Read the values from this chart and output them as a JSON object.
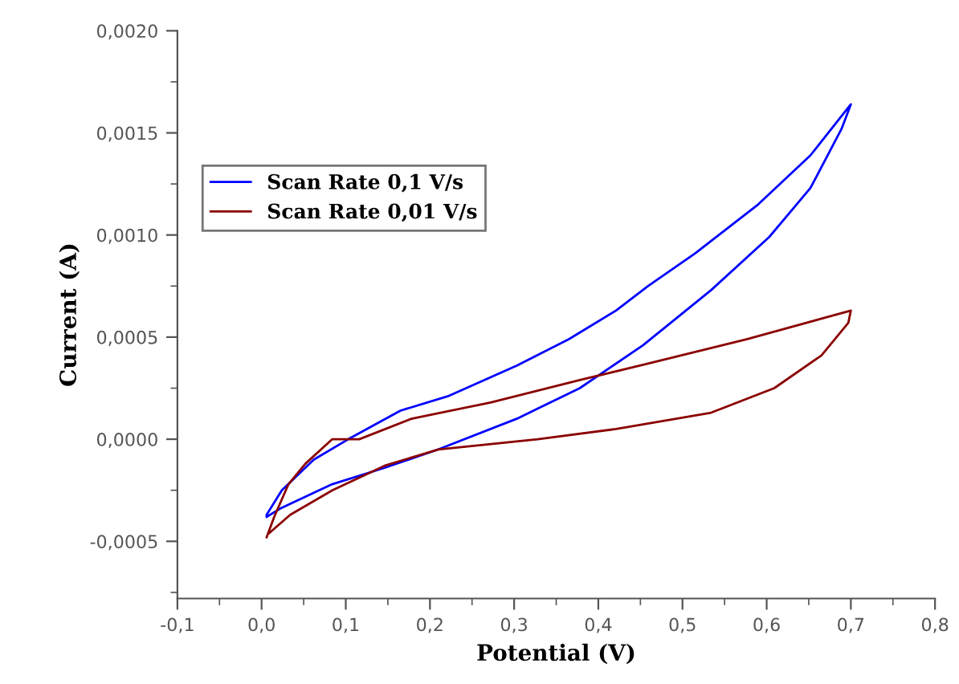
{
  "chart_data": {
    "type": "line",
    "xlabel": "Potential (V)",
    "ylabel": "Current (A)",
    "xlim": [
      -0.1,
      0.8
    ],
    "ylim": [
      -0.00078,
      0.002
    ],
    "xticks": [
      {
        "value": -0.1,
        "label": "-0,1"
      },
      {
        "value": 0,
        "label": "0,0"
      },
      {
        "value": 0.1,
        "label": "0,1"
      },
      {
        "value": 0.2,
        "label": "0,2"
      },
      {
        "value": 0.3,
        "label": "0,3"
      },
      {
        "value": 0.4,
        "label": "0,4"
      },
      {
        "value": 0.5,
        "label": "0,5"
      },
      {
        "value": 0.6,
        "label": "0,6"
      },
      {
        "value": 0.7,
        "label": "0,7"
      },
      {
        "value": 0.8,
        "label": "0,8"
      }
    ],
    "yticks": [
      {
        "value": -0.0005,
        "label": "-0,0005"
      },
      {
        "value": 0,
        "label": "0,0000"
      },
      {
        "value": 0.0005,
        "label": "0,0005"
      },
      {
        "value": 0.001,
        "label": "0,0010"
      },
      {
        "value": 0.0015,
        "label": "0,0015"
      },
      {
        "value": 0.002,
        "label": "0,0020"
      }
    ],
    "legend": "top left",
    "grid": false,
    "marker": "none",
    "line_style": "solid",
    "series": [
      {
        "name": "Scan Rate 0,1 V/s",
        "color": "#0000ff",
        "x": [
          0.006,
          0.024,
          0.062,
          0.103,
          0.165,
          0.221,
          0.303,
          0.365,
          0.421,
          0.459,
          0.515,
          0.59,
          0.652,
          0.7,
          0.689,
          0.652,
          0.603,
          0.534,
          0.453,
          0.378,
          0.303,
          0.21,
          0.146,
          0.084,
          0.022,
          0.006
        ],
        "values": [
          -0.00037,
          -0.00025,
          -0.0001,
          0,
          0.00014,
          0.00021,
          0.00036,
          0.00049,
          0.00063,
          0.00075,
          0.00091,
          0.00115,
          0.00139,
          0.00164,
          0.00152,
          0.00123,
          0.00099,
          0.00073,
          0.00046,
          0.00025,
          0.0001,
          -5e-05,
          -0.00014,
          -0.00022,
          -0.00034,
          -0.00038
        ]
      },
      {
        "name": "Scan Rate 0,01 V/s",
        "color": "#8b0000",
        "x": [
          0.006,
          0.015,
          0.032,
          0.052,
          0.084,
          0.116,
          0.178,
          0.272,
          0.378,
          0.459,
          0.577,
          0.7,
          0.697,
          0.665,
          0.609,
          0.534,
          0.421,
          0.328,
          0.21,
          0.146,
          0.084,
          0.034,
          0.009
        ],
        "values": [
          -0.00048,
          -0.00038,
          -0.00022,
          -0.00012,
          0,
          0,
          0.0001,
          0.00018,
          0.00029,
          0.00037,
          0.00049,
          0.00063,
          0.00057,
          0.00041,
          0.00025,
          0.00013,
          5e-05,
          0,
          -5e-05,
          -0.00013,
          -0.00025,
          -0.00037,
          -0.00046
        ]
      }
    ]
  }
}
